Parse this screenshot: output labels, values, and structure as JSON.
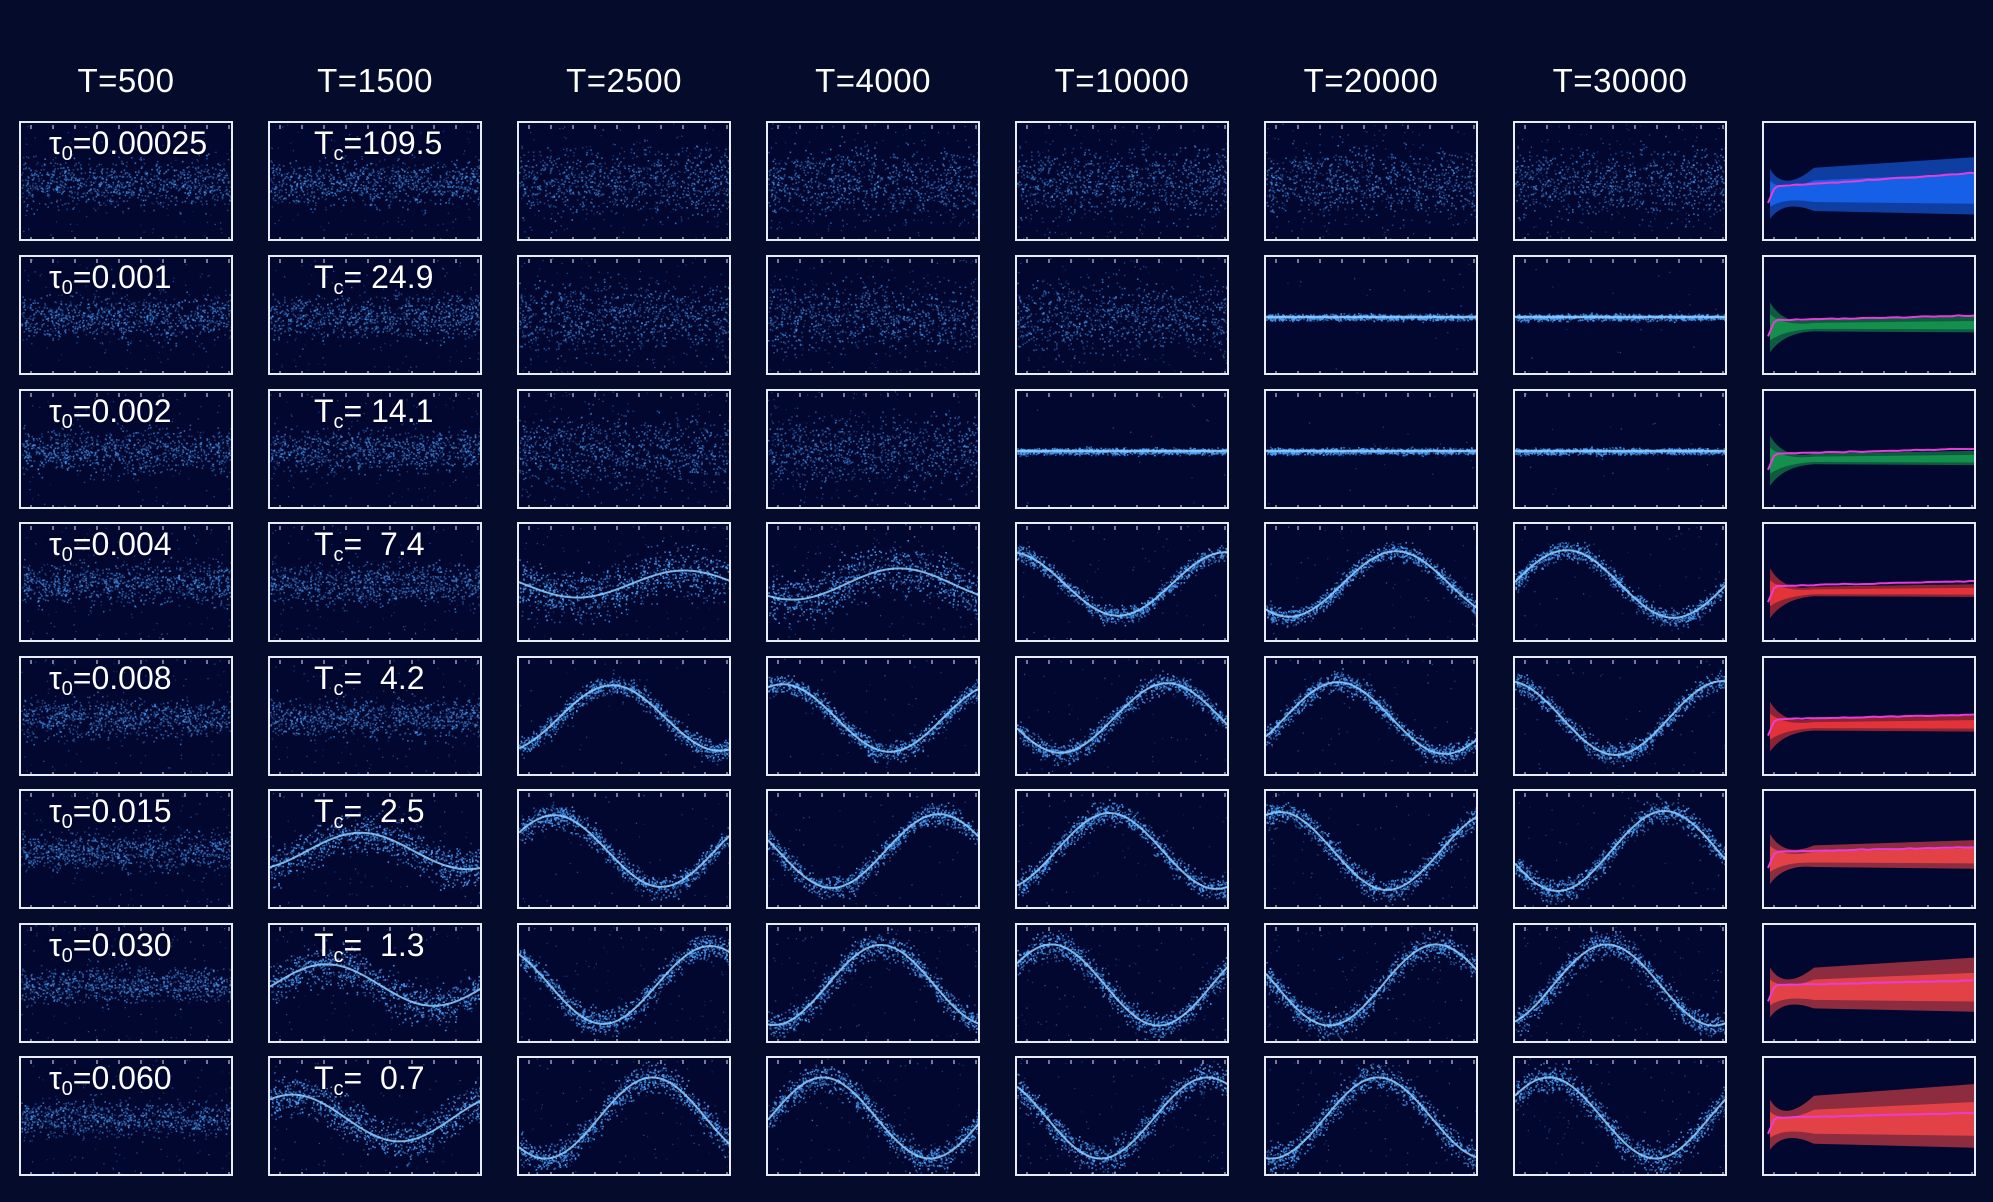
{
  "column_headers": [
    "T=500",
    "T=1500",
    "T=2500",
    "T=4000",
    "T=10000",
    "T=20000",
    "T=30000"
  ],
  "rows": [
    {
      "tau0_prefix": "τ",
      "tau0_sub": "0",
      "tau0_value": "=0.00025",
      "tc_prefix": "T",
      "tc_sub": "c",
      "tc_value": "=109.5"
    },
    {
      "tau0_prefix": "τ",
      "tau0_sub": "0",
      "tau0_value": "=0.001",
      "tc_prefix": "T",
      "tc_sub": "c",
      "tc_value": "= 24.9"
    },
    {
      "tau0_prefix": "τ",
      "tau0_sub": "0",
      "tau0_value": "=0.002",
      "tc_prefix": "T",
      "tc_sub": "c",
      "tc_value": "= 14.1"
    },
    {
      "tau0_prefix": "τ",
      "tau0_sub": "0",
      "tau0_value": "=0.004",
      "tc_prefix": "T",
      "tc_sub": "c",
      "tc_value": "=  7.4"
    },
    {
      "tau0_prefix": "τ",
      "tau0_sub": "0",
      "tau0_value": "=0.008",
      "tc_prefix": "T",
      "tc_sub": "c",
      "tc_value": "=  4.2"
    },
    {
      "tau0_prefix": "τ",
      "tau0_sub": "0",
      "tau0_value": "=0.015",
      "tc_prefix": "T",
      "tc_sub": "c",
      "tc_value": "=  2.5"
    },
    {
      "tau0_prefix": "τ",
      "tau0_sub": "0",
      "tau0_value": "=0.030",
      "tc_prefix": "T",
      "tc_sub": "c",
      "tc_value": "=  1.3"
    },
    {
      "tau0_prefix": "τ",
      "tau0_sub": "0",
      "tau0_value": "=0.060",
      "tc_prefix": "T",
      "tc_sub": "c",
      "tc_value": "=  0.7"
    }
  ],
  "colors": {
    "background": "#050b2a",
    "panel_background": "#020730",
    "frame": "#e8ecf5",
    "particles": "#4aa3ff",
    "trace_line": "#e83cd8",
    "summary_fill_by_row": [
      "#1a6cff",
      "#18a050",
      "#18a050",
      "#ff3a3a",
      "#ff3a3a",
      "#ff4a4a",
      "#ff4a4a",
      "#ff4a4a"
    ]
  }
}
